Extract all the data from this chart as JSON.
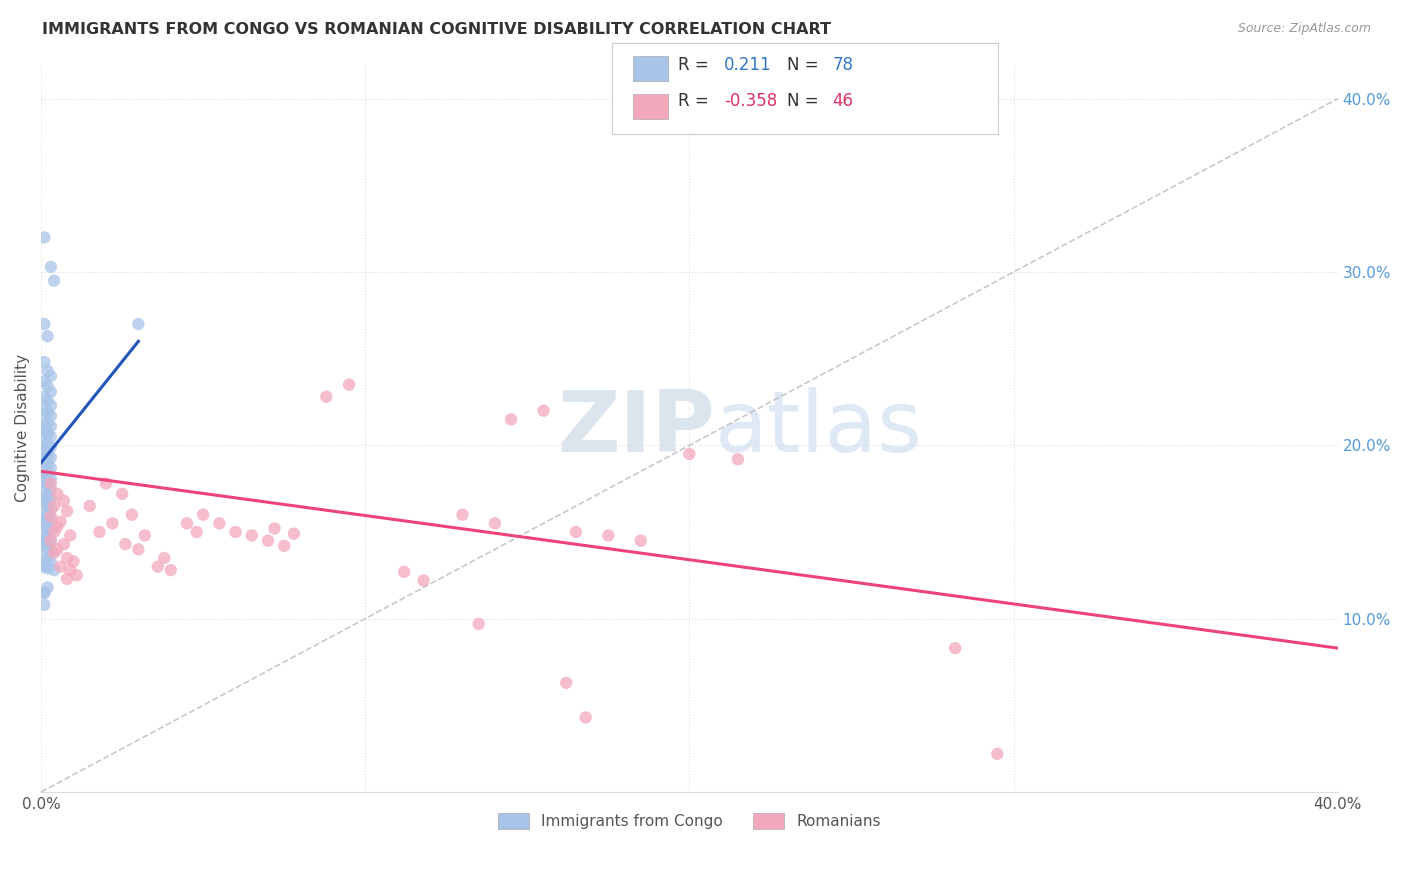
{
  "title": "IMMIGRANTS FROM CONGO VS ROMANIAN COGNITIVE DISABILITY CORRELATION CHART",
  "source": "Source: ZipAtlas.com",
  "ylabel": "Cognitive Disability",
  "xlim": [
    0.0,
    0.4
  ],
  "ylim": [
    0.0,
    0.42
  ],
  "y_ticks_right": [
    0.1,
    0.2,
    0.3,
    0.4
  ],
  "y_tick_labels_right": [
    "10.0%",
    "20.0%",
    "30.0%",
    "40.0%"
  ],
  "congo_color": "#a8c4e8",
  "romanian_color": "#f4a8bc",
  "congo_line_color": "#2255bb",
  "romanian_line_color": "#ee4477",
  "dashed_line_color": "#bbbbbb",
  "congo_scatter": [
    [
      0.001,
      0.32
    ],
    [
      0.003,
      0.303
    ],
    [
      0.004,
      0.295
    ],
    [
      0.001,
      0.27
    ],
    [
      0.002,
      0.263
    ],
    [
      0.03,
      0.27
    ],
    [
      0.001,
      0.248
    ],
    [
      0.002,
      0.243
    ],
    [
      0.003,
      0.24
    ],
    [
      0.001,
      0.237
    ],
    [
      0.002,
      0.234
    ],
    [
      0.003,
      0.231
    ],
    [
      0.001,
      0.228
    ],
    [
      0.002,
      0.226
    ],
    [
      0.003,
      0.223
    ],
    [
      0.001,
      0.221
    ],
    [
      0.002,
      0.219
    ],
    [
      0.003,
      0.217
    ],
    [
      0.001,
      0.215
    ],
    [
      0.002,
      0.213
    ],
    [
      0.003,
      0.211
    ],
    [
      0.001,
      0.209
    ],
    [
      0.002,
      0.207
    ],
    [
      0.003,
      0.205
    ],
    [
      0.001,
      0.203
    ],
    [
      0.002,
      0.201
    ],
    [
      0.003,
      0.199
    ],
    [
      0.001,
      0.197
    ],
    [
      0.002,
      0.195
    ],
    [
      0.003,
      0.193
    ],
    [
      0.001,
      0.191
    ],
    [
      0.002,
      0.189
    ],
    [
      0.003,
      0.187
    ],
    [
      0.001,
      0.185
    ],
    [
      0.002,
      0.183
    ],
    [
      0.003,
      0.181
    ],
    [
      0.001,
      0.179
    ],
    [
      0.002,
      0.177
    ],
    [
      0.003,
      0.175
    ],
    [
      0.001,
      0.173
    ],
    [
      0.002,
      0.171
    ],
    [
      0.003,
      0.169
    ],
    [
      0.001,
      0.167
    ],
    [
      0.002,
      0.165
    ],
    [
      0.003,
      0.163
    ],
    [
      0.001,
      0.161
    ],
    [
      0.002,
      0.159
    ],
    [
      0.003,
      0.157
    ],
    [
      0.001,
      0.155
    ],
    [
      0.002,
      0.153
    ],
    [
      0.003,
      0.151
    ],
    [
      0.001,
      0.149
    ],
    [
      0.002,
      0.147
    ],
    [
      0.003,
      0.145
    ],
    [
      0.001,
      0.143
    ],
    [
      0.002,
      0.141
    ],
    [
      0.003,
      0.139
    ],
    [
      0.001,
      0.137
    ],
    [
      0.002,
      0.135
    ],
    [
      0.003,
      0.133
    ],
    [
      0.001,
      0.131
    ],
    [
      0.002,
      0.129
    ],
    [
      0.001,
      0.115
    ],
    [
      0.001,
      0.108
    ],
    [
      0.001,
      0.145
    ],
    [
      0.002,
      0.142
    ],
    [
      0.001,
      0.13
    ],
    [
      0.004,
      0.128
    ],
    [
      0.002,
      0.118
    ],
    [
      0.001,
      0.115
    ],
    [
      0.001,
      0.155
    ],
    [
      0.002,
      0.152
    ],
    [
      0.001,
      0.17
    ],
    [
      0.002,
      0.167
    ],
    [
      0.001,
      0.183
    ],
    [
      0.002,
      0.18
    ],
    [
      0.001,
      0.197
    ],
    [
      0.002,
      0.194
    ],
    [
      0.001,
      0.21
    ],
    [
      0.002,
      0.207
    ]
  ],
  "romanian_scatter": [
    [
      0.003,
      0.178
    ],
    [
      0.005,
      0.172
    ],
    [
      0.007,
      0.168
    ],
    [
      0.004,
      0.165
    ],
    [
      0.008,
      0.162
    ],
    [
      0.003,
      0.159
    ],
    [
      0.006,
      0.156
    ],
    [
      0.005,
      0.153
    ],
    [
      0.004,
      0.15
    ],
    [
      0.009,
      0.148
    ],
    [
      0.003,
      0.145
    ],
    [
      0.007,
      0.143
    ],
    [
      0.005,
      0.14
    ],
    [
      0.004,
      0.138
    ],
    [
      0.008,
      0.135
    ],
    [
      0.01,
      0.133
    ],
    [
      0.006,
      0.13
    ],
    [
      0.009,
      0.128
    ],
    [
      0.011,
      0.125
    ],
    [
      0.008,
      0.123
    ],
    [
      0.02,
      0.178
    ],
    [
      0.025,
      0.172
    ],
    [
      0.015,
      0.165
    ],
    [
      0.028,
      0.16
    ],
    [
      0.022,
      0.155
    ],
    [
      0.018,
      0.15
    ],
    [
      0.032,
      0.148
    ],
    [
      0.026,
      0.143
    ],
    [
      0.03,
      0.14
    ],
    [
      0.038,
      0.135
    ],
    [
      0.036,
      0.13
    ],
    [
      0.04,
      0.128
    ],
    [
      0.05,
      0.16
    ],
    [
      0.055,
      0.155
    ],
    [
      0.06,
      0.15
    ],
    [
      0.065,
      0.148
    ],
    [
      0.07,
      0.145
    ],
    [
      0.075,
      0.142
    ],
    [
      0.045,
      0.155
    ],
    [
      0.048,
      0.15
    ],
    [
      0.13,
      0.16
    ],
    [
      0.14,
      0.155
    ],
    [
      0.155,
      0.22
    ],
    [
      0.145,
      0.215
    ],
    [
      0.2,
      0.195
    ],
    [
      0.215,
      0.192
    ],
    [
      0.095,
      0.235
    ],
    [
      0.088,
      0.228
    ],
    [
      0.072,
      0.152
    ],
    [
      0.078,
      0.149
    ],
    [
      0.112,
      0.127
    ],
    [
      0.118,
      0.122
    ],
    [
      0.135,
      0.097
    ],
    [
      0.282,
      0.083
    ],
    [
      0.162,
      0.063
    ],
    [
      0.168,
      0.043
    ],
    [
      0.295,
      0.022
    ],
    [
      0.165,
      0.15
    ],
    [
      0.175,
      0.148
    ],
    [
      0.185,
      0.145
    ]
  ]
}
